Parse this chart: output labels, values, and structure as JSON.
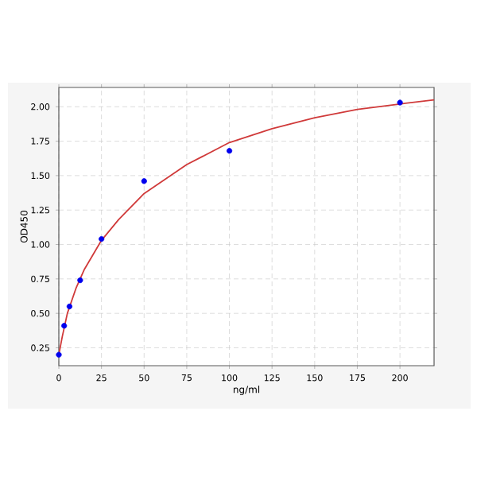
{
  "chart_data": {
    "type": "scatter",
    "xlabel": "ng/ml",
    "ylabel": "OD450",
    "xlim": [
      0,
      220
    ],
    "ylim": [
      0.12,
      2.14
    ],
    "xticks": [
      0,
      25,
      50,
      75,
      100,
      125,
      150,
      175,
      200
    ],
    "yticks": [
      {
        "value": 0.25,
        "label": "0.25"
      },
      {
        "value": 0.5,
        "label": "0.50"
      },
      {
        "value": 0.75,
        "label": "0.75"
      },
      {
        "value": 1.0,
        "label": "1.00"
      },
      {
        "value": 1.25,
        "label": "1.25"
      },
      {
        "value": 1.5,
        "label": "1.50"
      },
      {
        "value": 1.75,
        "label": "1.75"
      },
      {
        "value": 2.0,
        "label": "2.00"
      }
    ],
    "grid": true,
    "marker": "circle",
    "series": [
      {
        "type": "line",
        "color": "#d03a3a",
        "marker": "none",
        "line_style": "solid",
        "x": [
          0,
          2,
          5,
          10,
          15,
          25,
          35,
          50,
          75,
          100,
          125,
          150,
          175,
          200,
          220
        ],
        "values": [
          0.2,
          0.33,
          0.5,
          0.68,
          0.82,
          1.03,
          1.18,
          1.37,
          1.58,
          1.74,
          1.84,
          1.92,
          1.98,
          2.02,
          2.05
        ]
      },
      {
        "color": "#0000ee",
        "x": [
          0,
          3.125,
          6.25,
          12.5,
          25,
          50,
          100,
          200
        ],
        "values": [
          0.2,
          0.41,
          0.55,
          0.74,
          1.04,
          1.46,
          1.68,
          2.03
        ]
      }
    ]
  }
}
